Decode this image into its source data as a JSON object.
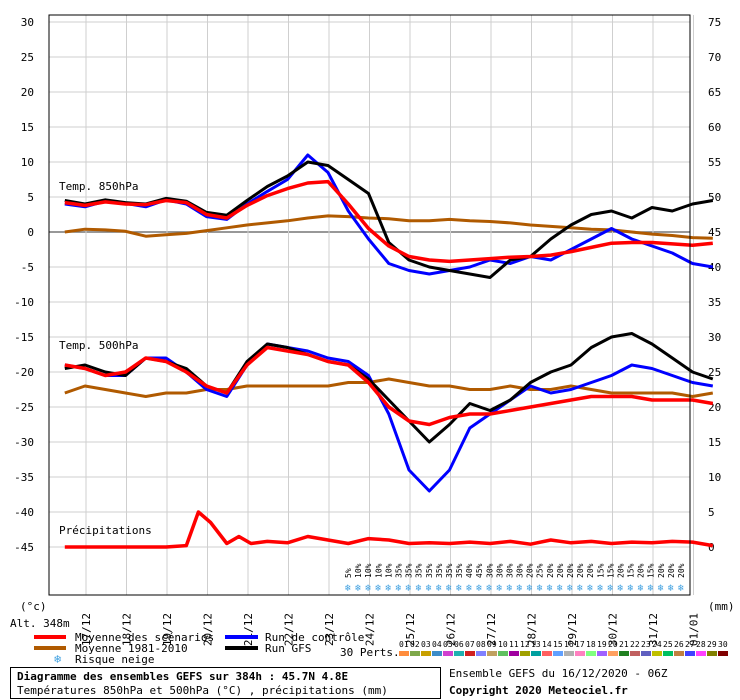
{
  "chart_data": {
    "type": "line",
    "left_axis_unit": "(°c)",
    "right_axis_unit": "(mm)",
    "altitude_label": "Alt. 348m",
    "left_ticks": [
      30,
      25,
      20,
      15,
      10,
      5,
      0,
      -5,
      -10,
      -15,
      -20,
      -25,
      -30,
      -35,
      -40,
      -45
    ],
    "right_ticks": [
      75,
      70,
      65,
      60,
      55,
      50,
      45,
      40,
      35,
      30,
      25,
      20,
      15,
      10,
      5,
      0
    ],
    "left_ylim": [
      -45,
      30
    ],
    "right_ylim": [
      0,
      75
    ],
    "x_ticks": [
      "17/12",
      "18/12",
      "19/12",
      "20/12",
      "21/12",
      "22/12",
      "23/12",
      "24/12",
      "25/12",
      "26/12",
      "27/12",
      "28/12",
      "29/12",
      "30/12",
      "31/12",
      "01/01"
    ],
    "x_range_days": [
      0,
      16
    ],
    "panels": {
      "t850_label": "Temp. 850hPa",
      "t500_label": "Temp. 500hPa",
      "precip_label": "Précipitations"
    },
    "series": [
      {
        "name": "Moyenne des scénarios",
        "panel": "850hPa",
        "color": "#ff0000",
        "x": [
          0,
          0.5,
          1,
          1.5,
          2,
          2.5,
          3,
          3.5,
          4,
          4.5,
          5,
          5.5,
          6,
          6.5,
          7,
          7.5,
          8,
          8.5,
          9,
          9.5,
          10,
          10.5,
          11,
          11.5,
          12,
          12.5,
          13,
          13.5,
          14,
          14.5,
          15,
          15.5,
          16
        ],
        "values": [
          4.2,
          3.8,
          4.3,
          4.0,
          3.9,
          4.5,
          4.2,
          2.5,
          2.0,
          3.8,
          5.2,
          6.2,
          7.0,
          7.2,
          4.0,
          0.5,
          -2.0,
          -3.5,
          -4.0,
          -4.2,
          -4.0,
          -3.8,
          -3.6,
          -3.5,
          -3.3,
          -2.8,
          -2.2,
          -1.6,
          -1.5,
          -1.5,
          -1.7,
          -1.9,
          -1.6
        ]
      },
      {
        "name": "Moyenne 1981-2010",
        "panel": "850hPa",
        "color": "#b05a00",
        "x": [
          0,
          0.5,
          1,
          1.5,
          2,
          2.5,
          3,
          3.5,
          4,
          4.5,
          5,
          5.5,
          6,
          6.5,
          7,
          7.5,
          8,
          8.5,
          9,
          9.5,
          10,
          10.5,
          11,
          11.5,
          12,
          12.5,
          13,
          13.5,
          14,
          14.5,
          15,
          15.5,
          16
        ],
        "values": [
          0,
          0.4,
          0.3,
          0.1,
          -0.6,
          -0.4,
          -0.2,
          0.2,
          0.6,
          1.0,
          1.3,
          1.6,
          2.0,
          2.3,
          2.2,
          2.0,
          1.9,
          1.6,
          1.6,
          1.8,
          1.6,
          1.5,
          1.3,
          1.0,
          0.8,
          0.6,
          0.4,
          0.3,
          0.0,
          -0.3,
          -0.5,
          -0.8,
          -0.9
        ]
      },
      {
        "name": "Run de contrôle",
        "panel": "850hPa",
        "color": "#0000ff",
        "x": [
          0,
          0.5,
          1,
          1.5,
          2,
          2.5,
          3,
          3.5,
          4,
          4.5,
          5,
          5.5,
          6,
          6.5,
          7,
          7.5,
          8,
          8.5,
          9,
          9.5,
          10,
          10.5,
          11,
          11.5,
          12,
          12.5,
          13,
          13.5,
          14,
          14.5,
          15,
          15.5,
          16
        ],
        "values": [
          4.0,
          3.6,
          4.4,
          4.1,
          3.6,
          4.6,
          4.0,
          2.2,
          1.8,
          4.0,
          5.8,
          7.5,
          11.0,
          8.5,
          3.0,
          -1.0,
          -4.5,
          -5.5,
          -6.0,
          -5.5,
          -5.0,
          -4.0,
          -4.5,
          -3.5,
          -4.0,
          -2.5,
          -1.0,
          0.5,
          -1.0,
          -2.0,
          -3.0,
          -4.5,
          -5.0
        ]
      },
      {
        "name": "Run GFS",
        "panel": "850hPa",
        "color": "#000000",
        "x": [
          0,
          0.5,
          1,
          1.5,
          2,
          2.5,
          3,
          3.5,
          4,
          4.5,
          5,
          5.5,
          6,
          6.5,
          7,
          7.5,
          8,
          8.5,
          9,
          9.5,
          10,
          10.5,
          11,
          11.5,
          12,
          12.5,
          13,
          13.5,
          14,
          14.5,
          15,
          15.5,
          16
        ],
        "values": [
          4.5,
          4.0,
          4.6,
          4.2,
          4.0,
          4.8,
          4.4,
          2.8,
          2.4,
          4.5,
          6.5,
          8.0,
          10.0,
          9.5,
          7.5,
          5.5,
          -1.5,
          -4.0,
          -5.0,
          -5.5,
          -6.0,
          -6.5,
          -4.0,
          -3.5,
          -1.0,
          1.0,
          2.5,
          3.0,
          2.0,
          3.5,
          3.0,
          4.0,
          4.5
        ]
      },
      {
        "name": "Moyenne des scénarios",
        "panel": "500hPa",
        "color": "#ff0000",
        "x": [
          0,
          0.5,
          1,
          1.5,
          2,
          2.5,
          3,
          3.5,
          4,
          4.5,
          5,
          5.5,
          6,
          6.5,
          7,
          7.5,
          8,
          8.5,
          9,
          9.5,
          10,
          10.5,
          11,
          11.5,
          12,
          12.5,
          13,
          13.5,
          14,
          14.5,
          15,
          15.5,
          16
        ],
        "values": [
          -19.0,
          -19.5,
          -20.5,
          -20.0,
          -18.0,
          -18.5,
          -20.0,
          -22.0,
          -23.0,
          -19.0,
          -16.5,
          -17.0,
          -17.5,
          -18.5,
          -19.0,
          -21.5,
          -25.0,
          -27.0,
          -27.5,
          -26.5,
          -26.0,
          -26.0,
          -25.5,
          -25.0,
          -24.5,
          -24.0,
          -23.5,
          -23.5,
          -23.5,
          -24.0,
          -24.0,
          -24.0,
          -24.5
        ]
      },
      {
        "name": "Moyenne 1981-2010",
        "panel": "500hPa",
        "color": "#b05a00",
        "x": [
          0,
          0.5,
          1,
          1.5,
          2,
          2.5,
          3,
          3.5,
          4,
          4.5,
          5,
          5.5,
          6,
          6.5,
          7,
          7.5,
          8,
          8.5,
          9,
          9.5,
          10,
          10.5,
          11,
          11.5,
          12,
          12.5,
          13,
          13.5,
          14,
          14.5,
          15,
          15.5,
          16
        ],
        "values": [
          -23.0,
          -22.0,
          -22.5,
          -23.0,
          -23.5,
          -23.0,
          -23.0,
          -22.5,
          -22.5,
          -22.0,
          -22.0,
          -22.0,
          -22.0,
          -22.0,
          -21.5,
          -21.5,
          -21.0,
          -21.5,
          -22.0,
          -22.0,
          -22.5,
          -22.5,
          -22.0,
          -22.5,
          -22.5,
          -22.0,
          -22.5,
          -23.0,
          -23.0,
          -23.0,
          -23.0,
          -23.5,
          -23.0
        ]
      },
      {
        "name": "Run de contrôle",
        "panel": "500hPa",
        "color": "#0000ff",
        "x": [
          0,
          0.5,
          1,
          1.5,
          2,
          2.5,
          3,
          3.5,
          4,
          4.5,
          5,
          5.5,
          6,
          6.5,
          7,
          7.5,
          8,
          8.5,
          9,
          9.5,
          10,
          10.5,
          11,
          11.5,
          12,
          12.5,
          13,
          13.5,
          14,
          14.5,
          15,
          15.5,
          16
        ],
        "values": [
          -19.0,
          -19.5,
          -20.5,
          -20.5,
          -18.0,
          -18.0,
          -20.0,
          -22.5,
          -23.5,
          -19.0,
          -16.0,
          -16.5,
          -17.0,
          -18.0,
          -18.5,
          -20.5,
          -26.0,
          -34.0,
          -37.0,
          -34.0,
          -28.0,
          -26.0,
          -24.0,
          -22.0,
          -23.0,
          -22.5,
          -21.5,
          -20.5,
          -19.0,
          -19.5,
          -20.5,
          -21.5,
          -22.0
        ]
      },
      {
        "name": "Run GFS",
        "panel": "500hPa",
        "color": "#000000",
        "x": [
          0,
          0.5,
          1,
          1.5,
          2,
          2.5,
          3,
          3.5,
          4,
          4.5,
          5,
          5.5,
          6,
          6.5,
          7,
          7.5,
          8,
          8.5,
          9,
          9.5,
          10,
          10.5,
          11,
          11.5,
          12,
          12.5,
          13,
          13.5,
          14,
          14.5,
          15,
          15.5,
          16
        ],
        "values": [
          -19.5,
          -19.0,
          -20.0,
          -20.5,
          -18.0,
          -18.5,
          -19.5,
          -22.0,
          -23.0,
          -18.5,
          -16.0,
          -16.5,
          -17.5,
          -18.5,
          -19.0,
          -21.0,
          -24.0,
          -27.0,
          -30.0,
          -27.5,
          -24.5,
          -25.5,
          -24.0,
          -21.5,
          -20.0,
          -19.0,
          -16.5,
          -15.0,
          -14.5,
          -16.0,
          -18.0,
          -20.0,
          -21.0
        ]
      },
      {
        "name": "Moyenne des scénarios",
        "panel": "precip",
        "color": "#ff0000",
        "x": [
          0,
          0.5,
          1,
          1.5,
          2,
          2.5,
          3,
          3.3,
          3.6,
          4,
          4.3,
          4.6,
          5,
          5.5,
          6,
          6.5,
          7,
          7.5,
          8,
          8.5,
          9,
          9.5,
          10,
          10.5,
          11,
          11.5,
          12,
          12.5,
          13,
          13.5,
          14,
          14.5,
          15,
          15.5,
          16
        ],
        "values": [
          0,
          0,
          0,
          0,
          0,
          0,
          0.2,
          5.0,
          3.5,
          0.5,
          1.5,
          0.5,
          0.8,
          0.6,
          1.5,
          1.0,
          0.5,
          1.2,
          1.0,
          0.5,
          0.6,
          0.5,
          0.7,
          0.5,
          0.8,
          0.4,
          1.0,
          0.6,
          0.8,
          0.5,
          0.7,
          0.6,
          0.8,
          0.7,
          0.2
        ]
      }
    ],
    "snow_risk_row": [
      "5%",
      "10%",
      "10%",
      "10%",
      "10%",
      "35%",
      "35%",
      "35%",
      "35%",
      "35%",
      "35%",
      "35%",
      "40%",
      "45%",
      "30%",
      "30%",
      "30%",
      "30%",
      "20%",
      "25%",
      "20%",
      "20%",
      "20%",
      "20%",
      "20%",
      "15%",
      "15%",
      "20%",
      "15%",
      "20%",
      "15%",
      "20%",
      "20%",
      "20%"
    ],
    "legend": {
      "mean": "Moyenne des scénarios",
      "clim": "Moyenne 1981-2010",
      "snow": "Risque neige",
      "control": "Run de contrôle",
      "gfs": "Run GFS",
      "perts_label": "30 Perts.",
      "perts_numbers": [
        "01",
        "02",
        "03",
        "04",
        "05",
        "06",
        "07",
        "08",
        "09",
        "10",
        "11",
        "12",
        "13",
        "14",
        "15",
        "16",
        "17",
        "18",
        "19",
        "20",
        "21",
        "22",
        "23",
        "24",
        "25",
        "26",
        "27",
        "28",
        "29",
        "30"
      ],
      "perts_colors": [
        "#ff8c3c",
        "#7ea84a",
        "#c8a000",
        "#3c8cc8",
        "#d040d0",
        "#20b0b0",
        "#d02020",
        "#8080ff",
        "#c0a060",
        "#60c060",
        "#a000a0",
        "#a0a000",
        "#00a0a0",
        "#ff6060",
        "#60a0ff",
        "#b0b0b0",
        "#ff80c0",
        "#80ff80",
        "#a060ff",
        "#ffa060",
        "#208020",
        "#c06060",
        "#6060c0",
        "#c0c000",
        "#00c060",
        "#c08040",
        "#4040ff",
        "#ff40ff",
        "#808000",
        "#800000"
      ]
    }
  },
  "footer": {
    "title": "Diagramme des ensembles GEFS sur 384h : 45.7N 4.8E",
    "subtitle": "Températures 850hPa et 500hPa (°C) , précipitations (mm)",
    "run_info": "Ensemble GEFS du 16/12/2020 - 06Z",
    "copyright": "Copyright 2020 Meteociel.fr"
  }
}
